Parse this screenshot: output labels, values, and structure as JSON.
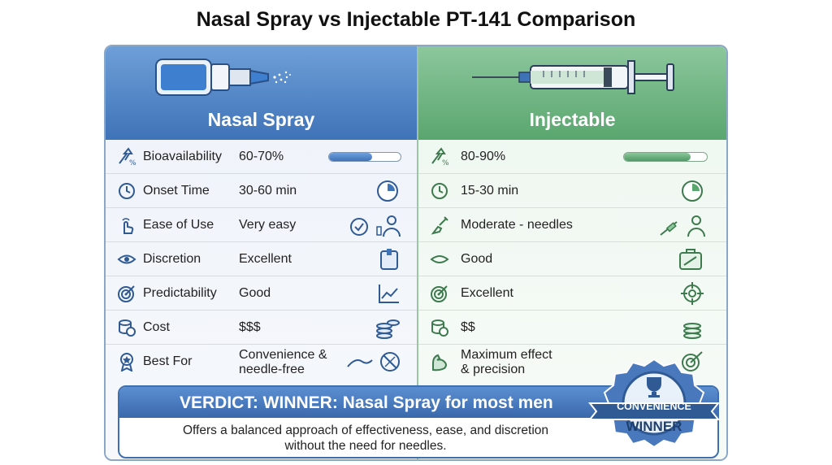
{
  "title": "Nasal Spray vs Injectable PT-141 Comparison",
  "colors": {
    "blue": "#3f73b8",
    "green": "#5aa66f",
    "dark_blue": "#2f5a94"
  },
  "left": {
    "label": "Nasal Spray",
    "rows": [
      {
        "name": "Bioavailability",
        "value": "60-70%",
        "icon": "arrow-percent-icon",
        "bar_fraction": 0.6
      },
      {
        "name": "Onset Time",
        "value": "30-60 min",
        "icon": "clock-icon"
      },
      {
        "name": "Ease of Use",
        "value": "Very easy",
        "icon": "hand-pointer-icon"
      },
      {
        "name": "Discretion",
        "value": "Excellent",
        "icon": "eye-icon"
      },
      {
        "name": "Predictability",
        "value": "Good",
        "icon": "target-icon"
      },
      {
        "name": "Cost",
        "value": "$$$",
        "icon": "coins-icon"
      },
      {
        "name": "Best For",
        "value_line1": "Convenience &",
        "value_line2": "needle-free",
        "icon": "award-icon"
      }
    ]
  },
  "right": {
    "label": "Injectable",
    "rows": [
      {
        "value": "80-90%",
        "bar_fraction": 0.8
      },
      {
        "value": "15-30 min"
      },
      {
        "value": "Moderate - needles"
      },
      {
        "value": "Good"
      },
      {
        "value": "Excellent"
      },
      {
        "value": "$$"
      },
      {
        "value_line1": "Maximum effect",
        "value_line2": "& precision"
      }
    ]
  },
  "verdict": {
    "title": "VERDICT: WINNER: Nasal Spray for most men",
    "line1": "Offers a balanced approach of effectiveness, ease, and discretion",
    "line2": "without the need for needles."
  },
  "badge": {
    "line1": "CONVENIENCE",
    "line2": "WINNER"
  }
}
